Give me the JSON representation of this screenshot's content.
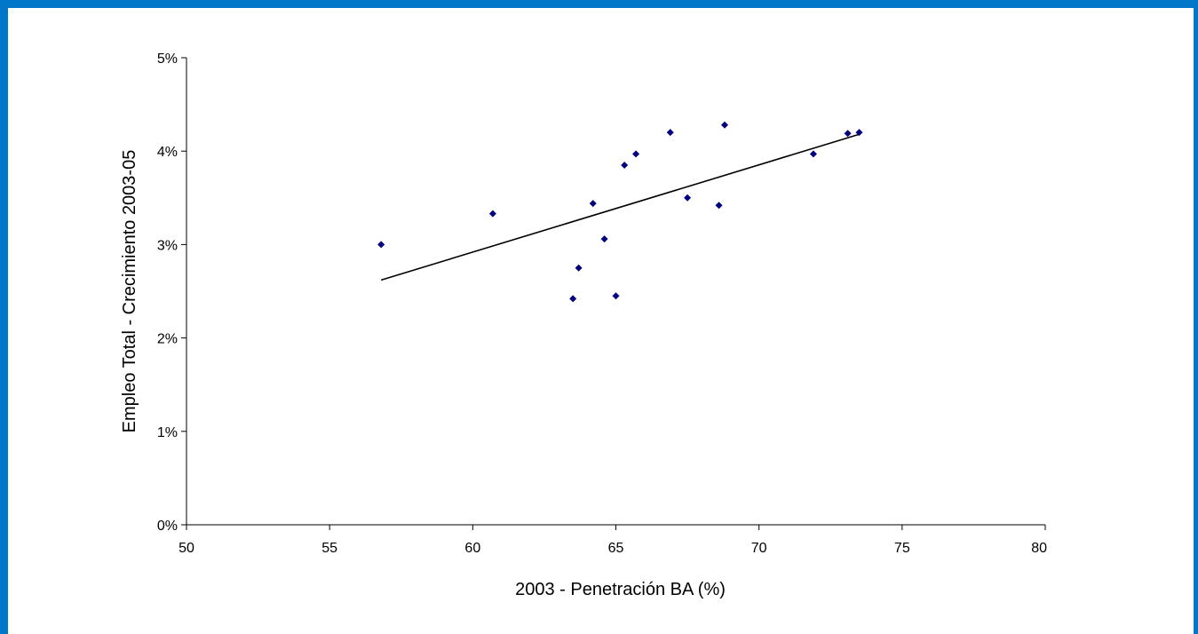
{
  "chart_data": {
    "type": "scatter",
    "title": "",
    "xlabel": "2003 - Penetración BA (%)",
    "ylabel": "Empleo Total - Crecimiento 2003-05",
    "xlim": [
      50,
      80
    ],
    "ylim": [
      0,
      0.05
    ],
    "x_ticks": [
      50,
      55,
      60,
      65,
      70,
      75,
      80
    ],
    "x_tick_labels": [
      "50",
      "55",
      "60",
      "65",
      "70",
      "75",
      "80"
    ],
    "y_ticks": [
      0,
      0.01,
      0.02,
      0.03,
      0.04,
      0.05
    ],
    "y_tick_labels": [
      "0%",
      "1%",
      "2%",
      "3%",
      "4%",
      "5%"
    ],
    "grid": false,
    "legend": "none",
    "marker": "diamond",
    "points": [
      {
        "x": 56.8,
        "y": 0.03
      },
      {
        "x": 60.7,
        "y": 0.0333
      },
      {
        "x": 63.5,
        "y": 0.0242
      },
      {
        "x": 63.7,
        "y": 0.0275
      },
      {
        "x": 64.2,
        "y": 0.0344
      },
      {
        "x": 64.6,
        "y": 0.0306
      },
      {
        "x": 65.0,
        "y": 0.0245
      },
      {
        "x": 65.3,
        "y": 0.0385
      },
      {
        "x": 65.7,
        "y": 0.0397
      },
      {
        "x": 66.9,
        "y": 0.042
      },
      {
        "x": 67.5,
        "y": 0.035
      },
      {
        "x": 68.6,
        "y": 0.0342
      },
      {
        "x": 68.8,
        "y": 0.0428
      },
      {
        "x": 71.9,
        "y": 0.0397
      },
      {
        "x": 73.1,
        "y": 0.0419
      },
      {
        "x": 73.5,
        "y": 0.042
      }
    ],
    "trendline": {
      "x": [
        56.8,
        73.5
      ],
      "y": [
        0.0262,
        0.0418
      ]
    }
  },
  "colors": {
    "frame_border": "#0077c8",
    "marker": "#000080",
    "axis": "#000000",
    "trendline": "#000000"
  }
}
